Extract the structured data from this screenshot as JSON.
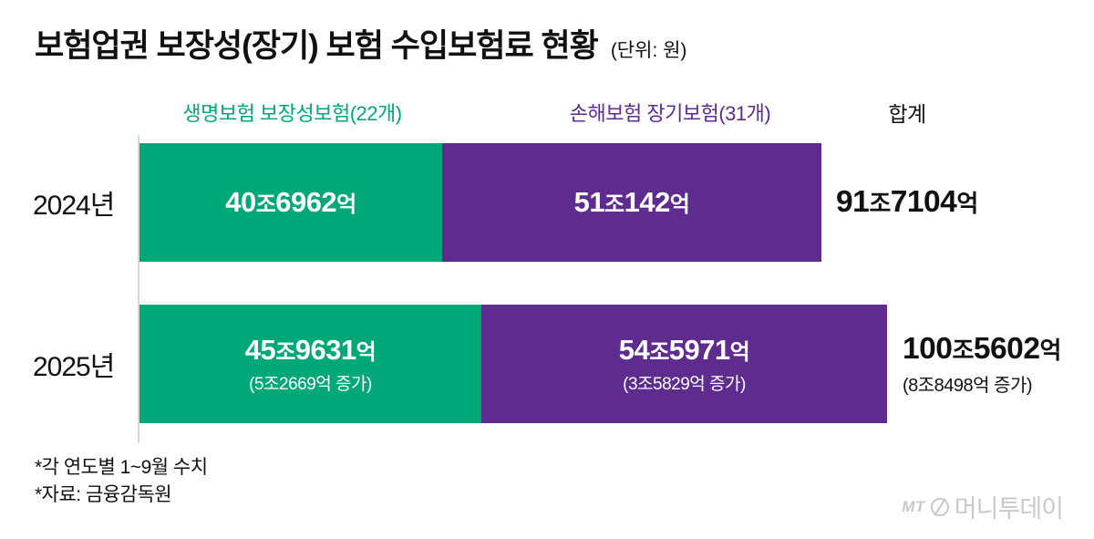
{
  "title": {
    "main": "보험업권 보장성(장기) 보험 수입보험료 현황",
    "unit": "(단위: 원)"
  },
  "chart_data": {
    "type": "bar",
    "orientation": "horizontal",
    "stacked": true,
    "title": "보험업권 보장성(장기) 보험 수입보험료 현황",
    "unit": "원",
    "categories": [
      "2024년",
      "2025년"
    ],
    "series": [
      {
        "name": "생명보험 보장성보험(22개)",
        "color": "#00a878",
        "values_jo": [
          40.6962,
          45.9631
        ],
        "labels": [
          "40조6962억",
          "45조9631억"
        ],
        "sublabels": [
          "",
          "(5조2669억 증가)"
        ]
      },
      {
        "name": "손해보험 장기보험(31개)",
        "color": "#5e2b8e",
        "values_jo": [
          51.0142,
          54.5971
        ],
        "labels": [
          "51조142억",
          "54조5971억"
        ],
        "sublabels": [
          "",
          "(3조5829억 증가)"
        ]
      }
    ],
    "totals": {
      "label": "합계",
      "values_jo": [
        91.7104,
        100.5602
      ],
      "labels": [
        "91조7104억",
        "100조5602억"
      ],
      "sublabels": [
        "",
        "(8조8498억 증가)"
      ]
    },
    "legend_position": "top",
    "grid": false
  },
  "footnotes": [
    "*각 연도별 1~9월 수치",
    "*자료: 금융감독원"
  ],
  "watermark": {
    "mt": "MT",
    "name": "머니투데이"
  }
}
